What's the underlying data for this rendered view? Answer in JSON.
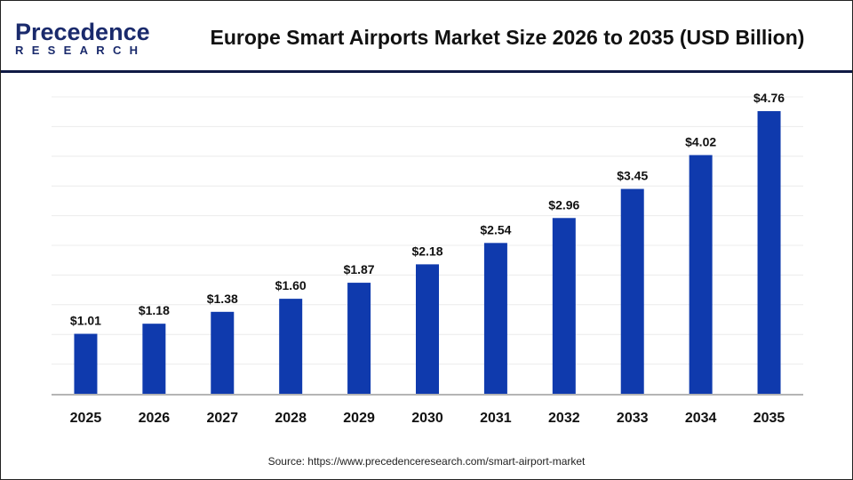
{
  "logo": {
    "line1": "Precedence",
    "line2": "RESEARCH"
  },
  "chart_data": {
    "type": "bar",
    "title": "Europe Smart Airports Market Size 2026 to 2035 (USD Billion)",
    "categories": [
      "2025",
      "2026",
      "2027",
      "2028",
      "2029",
      "2030",
      "2031",
      "2032",
      "2033",
      "2034",
      "2035"
    ],
    "values": [
      1.01,
      1.18,
      1.38,
      1.6,
      1.87,
      2.18,
      2.54,
      2.96,
      3.45,
      4.02,
      4.76
    ],
    "data_labels": [
      "$1.01",
      "$1.18",
      "$1.38",
      "$1.60",
      "$1.87",
      "$2.18",
      "$2.54",
      "$2.96",
      "$3.45",
      "$4.02",
      "$4.76"
    ],
    "ylim": [
      0,
      5
    ],
    "grid": true,
    "bar_color": "#0f3aad",
    "xlabel": "",
    "ylabel": ""
  },
  "source": "Source: https://www.precedenceresearch.com/smart-airport-market"
}
